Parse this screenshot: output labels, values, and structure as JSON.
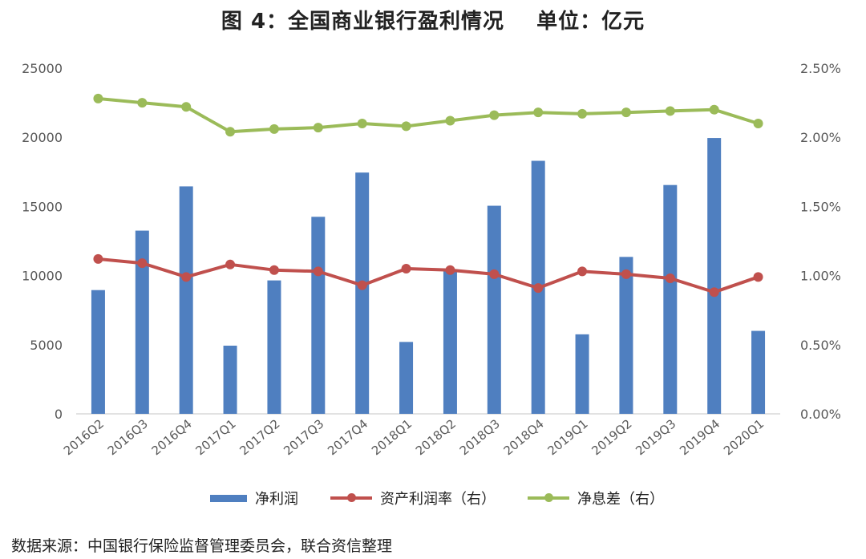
{
  "title": {
    "main": "图 4：全国商业银行盈利情况",
    "unit": "单位：亿元"
  },
  "source": "数据来源：中国银行保险监督管理委员会，联合资信整理",
  "colors": {
    "bar": "#4f7fc0",
    "roa": "#c0504d",
    "nim": "#9bbb59",
    "axis": "#d9d9d9",
    "text": "#595959"
  },
  "chart_data": {
    "type": "bar",
    "categories": [
      "2016Q2",
      "2016Q3",
      "2016Q4",
      "2017Q1",
      "2017Q2",
      "2017Q3",
      "2017Q4",
      "2018Q1",
      "2018Q2",
      "2018Q3",
      "2018Q4",
      "2019Q1",
      "2019Q2",
      "2019Q3",
      "2019Q4",
      "2020Q1"
    ],
    "y_left": {
      "min": 0,
      "max": 25000,
      "ticks": [
        "0",
        "5000",
        "10000",
        "15000",
        "20000",
        "25000"
      ]
    },
    "y_right": {
      "min": 0,
      "max": 2.5,
      "ticks": [
        "0.00%",
        "0.50%",
        "1.00%",
        "1.50%",
        "2.00%",
        "2.50%"
      ]
    },
    "grid": false,
    "legend_position": "bottom",
    "series": [
      {
        "name": "净利润",
        "type": "bar",
        "axis": "left",
        "values": [
          8950,
          13250,
          16450,
          4930,
          9650,
          14250,
          17450,
          5200,
          10400,
          15050,
          18300,
          5750,
          11350,
          16550,
          19950,
          6000
        ]
      },
      {
        "name": "资产利润率（右）",
        "type": "line",
        "axis": "right",
        "values": [
          1.12,
          1.09,
          0.99,
          1.08,
          1.04,
          1.03,
          0.93,
          1.05,
          1.04,
          1.01,
          0.91,
          1.03,
          1.01,
          0.98,
          0.88,
          0.99
        ]
      },
      {
        "name": "净息差（右）",
        "type": "line",
        "axis": "right",
        "values": [
          2.28,
          2.25,
          2.22,
          2.04,
          2.06,
          2.07,
          2.1,
          2.08,
          2.12,
          2.16,
          2.18,
          2.17,
          2.18,
          2.19,
          2.2,
          2.1
        ]
      }
    ]
  }
}
